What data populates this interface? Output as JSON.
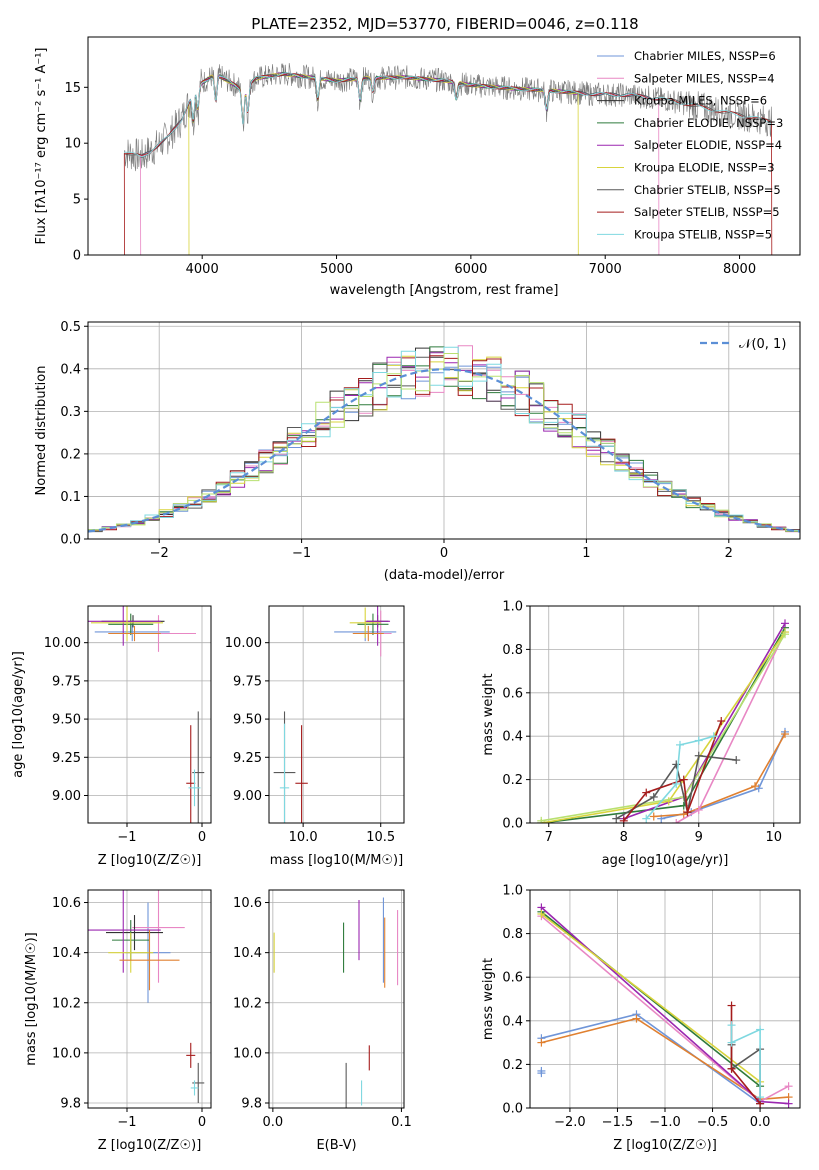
{
  "figure": {
    "title": "PLATE=2352, MJD=53770, FIBERID=0046, z=0.118"
  },
  "colors": {
    "Chabrier MILES": "#6f95d8",
    "Salpeter MILES": "#e887c4",
    "Kroupa MILES": "#333333",
    "Chabrier ELODIE": "#2f7b3c",
    "Salpeter ELODIE": "#9b27b0",
    "Kroupa ELODIE": "#d8d43c",
    "Chabrier STELIB": "#595959",
    "Salpeter STELIB": "#a51c1c",
    "Kroupa STELIB": "#7fd8e0",
    "extra": "#e08030",
    "gauss": "#5b8fd6",
    "lime": "#b8e070"
  },
  "chart_data": [
    {
      "id": "spectrum",
      "type": "line",
      "xlabel": "wavelength [Angstrom, rest frame]",
      "ylabel": "Flux [f$_\\lambda$10$^{-17}$ erg cm$^{-2}$ s$^{-1}$ A$^{-1}$]",
      "ylabel_display": "Flux [fλ10⁻¹⁷ erg cm⁻² s⁻¹ A⁻¹]",
      "xlim": [
        3150,
        8450
      ],
      "ylim": [
        0,
        19.5
      ],
      "xticks": [
        4000,
        5000,
        6000,
        7000,
        8000
      ],
      "yticks": [
        0,
        5,
        10,
        15
      ],
      "legend_position": "top-right",
      "legend": [
        {
          "label": "Chabrier MILES, N$_{SSP}$=6",
          "display": "Chabrier MILES, NSSP=6"
        },
        {
          "label": "Salpeter MILES, N$_{SSP}$=4",
          "display": "Salpeter MILES, NSSP=4"
        },
        {
          "label": "Kroupa MILES, N$_{SSP}$=6",
          "display": "Kroupa MILES, NSSP=6"
        },
        {
          "label": "Chabrier ELODIE, N$_{SSP}$=3",
          "display": "Chabrier ELODIE, NSSP=3"
        },
        {
          "label": "Salpeter ELODIE, N$_{SSP}$=4",
          "display": "Salpeter ELODIE, NSSP=4"
        },
        {
          "label": "Kroupa ELODIE, N$_{SSP}$=3",
          "display": "Kroupa ELODIE, NSSP=3"
        },
        {
          "label": "Chabrier STELIB, N$_{SSP}$=5",
          "display": "Chabrier STELIB, NSSP=5"
        },
        {
          "label": "Salpeter STELIB, N$_{SSP}$=5",
          "display": "Salpeter STELIB, NSSP=5"
        },
        {
          "label": "Kroupa STELIB, N$_{SSP}$=5",
          "display": "Kroupa STELIB, NSSP=5"
        }
      ],
      "continuum": [
        [
          3420,
          9.2
        ],
        [
          3550,
          8.8
        ],
        [
          3650,
          9.6
        ],
        [
          3750,
          10.6
        ],
        [
          3850,
          12.2
        ],
        [
          3950,
          15.0
        ],
        [
          4100,
          16.2
        ],
        [
          4300,
          14.8
        ],
        [
          4400,
          15.8
        ],
        [
          4600,
          16.2
        ],
        [
          4800,
          15.9
        ],
        [
          5000,
          15.6
        ],
        [
          5200,
          15.8
        ],
        [
          5500,
          15.9
        ],
        [
          5800,
          15.6
        ],
        [
          6000,
          15.2
        ],
        [
          6300,
          14.9
        ],
        [
          6600,
          14.7
        ],
        [
          6900,
          14.4
        ],
        [
          7200,
          14.3
        ],
        [
          7500,
          13.8
        ],
        [
          7800,
          13.0
        ],
        [
          8100,
          12.3
        ],
        [
          8240,
          11.9
        ]
      ]
    },
    {
      "id": "residuals",
      "type": "histogram",
      "xlabel": "(data-model)/error",
      "ylabel": "Normed distribution",
      "xlim": [
        -2.5,
        2.5
      ],
      "ylim": [
        0,
        0.51
      ],
      "xticks": [
        -2,
        -1,
        0,
        1,
        2
      ],
      "yticks": [
        0.0,
        0.1,
        0.2,
        0.3,
        0.4,
        0.5
      ],
      "legend_position": "top-right",
      "legend": [
        {
          "label": "$\\mathcal{N}(0,1)$",
          "display": "𝒩(0, 1)"
        }
      ],
      "bin_width": 0.1
    },
    {
      "id": "age_vs_Z",
      "type": "errorbar",
      "xlabel": "Z [log$_{10}$(Z/Z$_\\odot$)]",
      "xlabel_display": "Z [log10(Z/Z☉)]",
      "ylabel_display": "age  [log10(age/yr)]",
      "xlim": [
        -1.52,
        0.12
      ],
      "ylim": [
        8.82,
        10.24
      ],
      "xticks": [
        -1,
        0
      ],
      "yticks": [
        9.0,
        9.25,
        9.5,
        9.75,
        10.0
      ],
      "points": [
        {
          "c": "Chabrier MILES",
          "x": -0.93,
          "xerr": 0.5,
          "y": 10.07,
          "yerr": 0.06
        },
        {
          "c": "Salpeter MILES",
          "x": -0.58,
          "xerr": 0.5,
          "y": 10.06,
          "yerr": 0.12
        },
        {
          "c": "Kroupa MILES",
          "x": -0.92,
          "xerr": 0.42,
          "y": 10.14,
          "yerr": 0.04
        },
        {
          "c": "Chabrier ELODIE",
          "x": -0.95,
          "xerr": 0.3,
          "y": 10.12,
          "yerr": 0.07
        },
        {
          "c": "Salpeter ELODIE",
          "x": -1.05,
          "xerr": 0.5,
          "y": 10.14,
          "yerr": 0.16
        },
        {
          "c": "Kroupa ELODIE",
          "x": -1.0,
          "xerr": 0.48,
          "y": 10.13,
          "yerr": 0.12
        },
        {
          "c": "Chabrier STELIB",
          "x": -0.05,
          "xerr": 0.08,
          "y": 9.15,
          "yerr": 0.4
        },
        {
          "c": "Salpeter STELIB",
          "x": -0.15,
          "xerr": 0.06,
          "y": 9.08,
          "yerr": 0.38
        },
        {
          "c": "Kroupa STELIB",
          "x": -0.1,
          "xerr": 0.08,
          "y": 9.05,
          "yerr": 0.12
        },
        {
          "c": "extra",
          "x": -0.9,
          "xerr": 0.35,
          "y": 10.06,
          "yerr": 0.05
        }
      ]
    },
    {
      "id": "age_vs_mass",
      "type": "errorbar",
      "xlabel_display": "mass [log10(M/M☉)]",
      "xlim": [
        9.78,
        10.65
      ],
      "ylim": [
        8.82,
        10.24
      ],
      "xticks": [
        10.0,
        10.5
      ],
      "xtick_labels": [
        "10.0",
        "10.5"
      ],
      "yticks": [
        9.0,
        9.25,
        9.5,
        9.75,
        10.0
      ],
      "points": [
        {
          "c": "Chabrier MILES",
          "x": 10.4,
          "xerr": 0.2,
          "y": 10.07,
          "yerr": 0.06
        },
        {
          "c": "Salpeter MILES",
          "x": 10.5,
          "xerr": 0.07,
          "y": 10.06,
          "yerr": 0.15
        },
        {
          "c": "Kroupa MILES",
          "x": 10.48,
          "xerr": 0.07,
          "y": 10.14,
          "yerr": 0.04
        },
        {
          "c": "Chabrier ELODIE",
          "x": 10.45,
          "xerr": 0.1,
          "y": 10.12,
          "yerr": 0.07
        },
        {
          "c": "Salpeter ELODIE",
          "x": 10.48,
          "xerr": 0.08,
          "y": 10.14,
          "yerr": 0.16
        },
        {
          "c": "Kroupa ELODIE",
          "x": 10.4,
          "xerr": 0.1,
          "y": 10.13,
          "yerr": 0.1
        },
        {
          "c": "Chabrier STELIB",
          "x": 9.88,
          "xerr": 0.07,
          "y": 9.15,
          "yerr": 0.4
        },
        {
          "c": "Salpeter STELIB",
          "x": 9.99,
          "xerr": 0.04,
          "y": 9.08,
          "yerr": 0.38
        },
        {
          "c": "Kroupa STELIB",
          "x": 9.88,
          "xerr": 0.03,
          "y": 9.05,
          "yerr": 0.42
        },
        {
          "c": "extra",
          "x": 10.42,
          "xerr": 0.1,
          "y": 10.06,
          "yerr": 0.05
        }
      ]
    },
    {
      "id": "mass_weight_vs_age",
      "type": "line",
      "xlabel_display": "age  [log10(age/yr)]",
      "ylabel": "mass weight",
      "xlim": [
        6.75,
        10.35
      ],
      "ylim": [
        0,
        1.0
      ],
      "xticks": [
        7,
        8,
        9,
        10
      ],
      "yticks": [
        0.0,
        0.2,
        0.4,
        0.6,
        0.8,
        1.0
      ],
      "series": [
        {
          "c": "Chabrier MILES",
          "points": [
            [
              8.5,
              0.02
            ],
            [
              8.9,
              0.05
            ],
            [
              9.8,
              0.16
            ],
            [
              10.15,
              0.42
            ]
          ]
        },
        {
          "c": "extra",
          "points": [
            [
              8.4,
              0.03
            ],
            [
              8.8,
              0.04
            ],
            [
              9.75,
              0.17
            ],
            [
              10.15,
              0.41
            ]
          ]
        },
        {
          "c": "Salpeter MILES",
          "points": [
            [
              8.7,
              0.0
            ],
            [
              9.0,
              0.06
            ],
            [
              10.15,
              0.88
            ]
          ]
        },
        {
          "c": "Chabrier ELODIE",
          "points": [
            [
              6.9,
              0.0
            ],
            [
              8.8,
              0.08
            ],
            [
              10.15,
              0.9
            ]
          ]
        },
        {
          "c": "Salpeter ELODIE",
          "points": [
            [
              8.0,
              0.02
            ],
            [
              8.8,
              0.12
            ],
            [
              10.15,
              0.92
            ]
          ]
        },
        {
          "c": "Kroupa ELODIE",
          "points": [
            [
              6.9,
              0.0
            ],
            [
              8.6,
              0.1
            ],
            [
              10.15,
              0.88
            ]
          ]
        },
        {
          "c": "lime",
          "points": [
            [
              6.9,
              0.01
            ],
            [
              8.8,
              0.12
            ],
            [
              10.15,
              0.87
            ]
          ]
        },
        {
          "c": "Chabrier STELIB",
          "points": [
            [
              7.9,
              0.02
            ],
            [
              8.4,
              0.12
            ],
            [
              8.7,
              0.27
            ],
            [
              8.85,
              0.05
            ],
            [
              9.0,
              0.31
            ],
            [
              9.5,
              0.29
            ]
          ]
        },
        {
          "c": "Salpeter STELIB",
          "points": [
            [
              8.0,
              0.01
            ],
            [
              8.3,
              0.14
            ],
            [
              8.8,
              0.2
            ],
            [
              8.85,
              0.05
            ],
            [
              9.3,
              0.47
            ]
          ]
        },
        {
          "c": "Kroupa STELIB",
          "points": [
            [
              8.3,
              0.02
            ],
            [
              8.7,
              0.18
            ],
            [
              8.75,
              0.36
            ],
            [
              9.0,
              0.38
            ],
            [
              9.2,
              0.4
            ]
          ]
        }
      ]
    },
    {
      "id": "mass_vs_Z",
      "type": "errorbar",
      "xlabel_display": "Z [log10(Z/Z☉)]",
      "ylabel_display": "mass [log10(M/M☉)]",
      "xlim": [
        -1.52,
        0.12
      ],
      "ylim": [
        9.78,
        10.65
      ],
      "xticks": [
        -1,
        0
      ],
      "yticks": [
        9.8,
        10.0,
        10.2,
        10.4,
        10.6
      ],
      "points": [
        {
          "c": "Chabrier MILES",
          "x": -0.72,
          "xerr": 0.3,
          "y": 10.4,
          "yerr": 0.2
        },
        {
          "c": "Salpeter MILES",
          "x": -0.58,
          "xerr": 0.35,
          "y": 10.5,
          "yerr": 0.22
        },
        {
          "c": "Kroupa MILES",
          "x": -0.9,
          "xerr": 0.38,
          "y": 10.48,
          "yerr": 0.07
        },
        {
          "c": "Chabrier ELODIE",
          "x": -0.95,
          "xerr": 0.25,
          "y": 10.45,
          "yerr": 0.08
        },
        {
          "c": "Salpeter ELODIE",
          "x": -1.05,
          "xerr": 0.5,
          "y": 10.49,
          "yerr": 0.17
        },
        {
          "c": "Kroupa ELODIE",
          "x": -0.95,
          "xerr": 0.3,
          "y": 10.4,
          "yerr": 0.08
        },
        {
          "c": "Chabrier STELIB",
          "x": -0.05,
          "xerr": 0.08,
          "y": 9.88,
          "yerr": 0.08
        },
        {
          "c": "Salpeter STELIB",
          "x": -0.15,
          "xerr": 0.06,
          "y": 9.99,
          "yerr": 0.05
        },
        {
          "c": "Kroupa STELIB",
          "x": -0.1,
          "xerr": 0.05,
          "y": 9.86,
          "yerr": 0.03
        },
        {
          "c": "extra",
          "x": -0.7,
          "xerr": 0.4,
          "y": 10.37,
          "yerr": 0.12
        }
      ]
    },
    {
      "id": "mass_vs_ebv",
      "type": "errorbar",
      "xlabel": "E(B-V)",
      "xlim": [
        -0.003,
        0.102
      ],
      "ylim": [
        9.78,
        10.65
      ],
      "xticks": [
        0.0,
        0.1
      ],
      "xtick_labels": [
        "0.0",
        "0.1"
      ],
      "yticks": [
        9.8,
        10.0,
        10.2,
        10.4,
        10.6
      ],
      "points": [
        {
          "c": "Kroupa ELODIE",
          "x": 0.001,
          "xerr": 0,
          "y": 10.4,
          "yerr": 0.08
        },
        {
          "c": "Chabrier ELODIE",
          "x": 0.055,
          "xerr": 0,
          "y": 10.42,
          "yerr": 0.1
        },
        {
          "c": "Chabrier STELIB",
          "x": 0.057,
          "xerr": 0,
          "y": 9.87,
          "yerr": 0.09
        },
        {
          "c": "Kroupa STELIB",
          "x": 0.069,
          "xerr": 0,
          "y": 9.84,
          "yerr": 0.05
        },
        {
          "c": "Salpeter ELODIE",
          "x": 0.067,
          "xerr": 0,
          "y": 10.49,
          "yerr": 0.12
        },
        {
          "c": "Salpeter STELIB",
          "x": 0.075,
          "xerr": 0,
          "y": 9.98,
          "yerr": 0.05
        },
        {
          "c": "Chabrier MILES",
          "x": 0.086,
          "xerr": 0,
          "y": 10.45,
          "yerr": 0.17
        },
        {
          "c": "extra",
          "x": 0.087,
          "xerr": 0,
          "y": 10.4,
          "yerr": 0.14
        },
        {
          "c": "Salpeter MILES",
          "x": 0.097,
          "xerr": 0,
          "y": 10.42,
          "yerr": 0.15
        }
      ]
    },
    {
      "id": "mass_weight_vs_Z",
      "type": "line",
      "xlabel_display": "Z [log10(Z/Z☉)]",
      "ylabel": "mass weight",
      "xlim": [
        -2.42,
        0.42
      ],
      "ylim": [
        0,
        1.0
      ],
      "xticks": [
        -2.0,
        -1.5,
        -1.0,
        -0.5,
        0.0
      ],
      "xtick_labels": [
        "−2.0",
        "−1.5",
        "−1.0",
        "−0.5",
        "0.0"
      ],
      "yticks": [
        0.0,
        0.2,
        0.4,
        0.6,
        0.8,
        1.0
      ],
      "series": [
        {
          "c": "Chabrier MILES",
          "points": [
            [
              -2.3,
              0.32
            ],
            [
              -1.3,
              0.43
            ],
            [
              0.0,
              0.02
            ]
          ]
        },
        {
          "c": "extra",
          "points": [
            [
              -2.3,
              0.3
            ],
            [
              -1.3,
              0.41
            ],
            [
              0.0,
              0.04
            ],
            [
              0.3,
              0.05
            ]
          ]
        },
        {
          "c": "Chabrier MILES",
          "points": [
            [
              -2.3,
              0.17
            ],
            [
              -2.3,
              0.16
            ]
          ]
        },
        {
          "c": "Salpeter MILES",
          "points": [
            [
              -2.3,
              0.88
            ],
            [
              0.0,
              0.03
            ],
            [
              0.3,
              0.1
            ]
          ]
        },
        {
          "c": "Chabrier ELODIE",
          "points": [
            [
              -2.3,
              0.9
            ],
            [
              0.0,
              0.1
            ]
          ]
        },
        {
          "c": "Salpeter ELODIE",
          "points": [
            [
              -2.3,
              0.92
            ],
            [
              0.0,
              0.03
            ],
            [
              0.3,
              0.02
            ]
          ]
        },
        {
          "c": "Kroupa ELODIE",
          "points": [
            [
              -2.3,
              0.89
            ],
            [
              0.0,
              0.12
            ]
          ]
        },
        {
          "c": "Chabrier STELIB",
          "points": [
            [
              -0.3,
              0.29
            ],
            [
              -0.3,
              0.18
            ],
            [
              0.0,
              0.27
            ],
            [
              0.0,
              0.02
            ]
          ]
        },
        {
          "c": "Salpeter STELIB",
          "points": [
            [
              -0.3,
              0.47
            ],
            [
              -0.3,
              0.18
            ],
            [
              0.0,
              0.02
            ]
          ]
        },
        {
          "c": "Kroupa STELIB",
          "points": [
            [
              -0.3,
              0.38
            ],
            [
              -0.3,
              0.3
            ],
            [
              0.0,
              0.36
            ],
            [
              0.0,
              0.05
            ]
          ]
        }
      ]
    }
  ]
}
